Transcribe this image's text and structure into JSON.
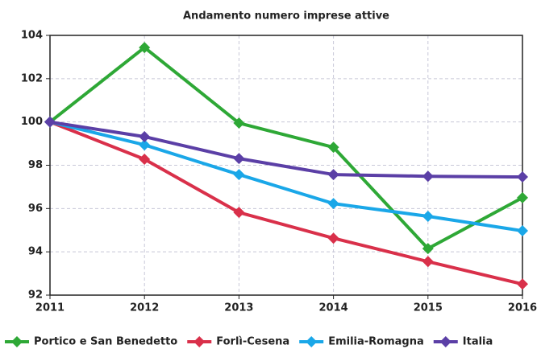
{
  "chart_data": {
    "type": "line",
    "title": "Andamento numero imprese attive",
    "x": [
      2011,
      2012,
      2013,
      2014,
      2015,
      2016
    ],
    "xlim": [
      2011,
      2016
    ],
    "xticks": [
      2011,
      2012,
      2013,
      2014,
      2015,
      2016
    ],
    "ylim": [
      92,
      104
    ],
    "yticks": [
      92,
      94,
      96,
      98,
      100,
      102,
      104
    ],
    "grid": true,
    "legend": "bottom",
    "series": [
      {
        "name": "Portico e San Benedetto",
        "color": "#2ea836",
        "values": [
          100,
          103.44,
          99.95,
          98.83,
          94.15,
          96.5
        ]
      },
      {
        "name": "Forlì-Cesena",
        "color": "#d9304a",
        "values": [
          100,
          98.28,
          95.82,
          94.63,
          93.55,
          92.51
        ]
      },
      {
        "name": "Emilia-Romagna",
        "color": "#1aa7e8",
        "values": [
          100,
          98.94,
          97.57,
          96.23,
          95.64,
          94.97
        ]
      },
      {
        "name": "Italia",
        "color": "#5b3fa6",
        "values": [
          100,
          99.32,
          98.31,
          97.57,
          97.49,
          97.46
        ]
      }
    ]
  }
}
